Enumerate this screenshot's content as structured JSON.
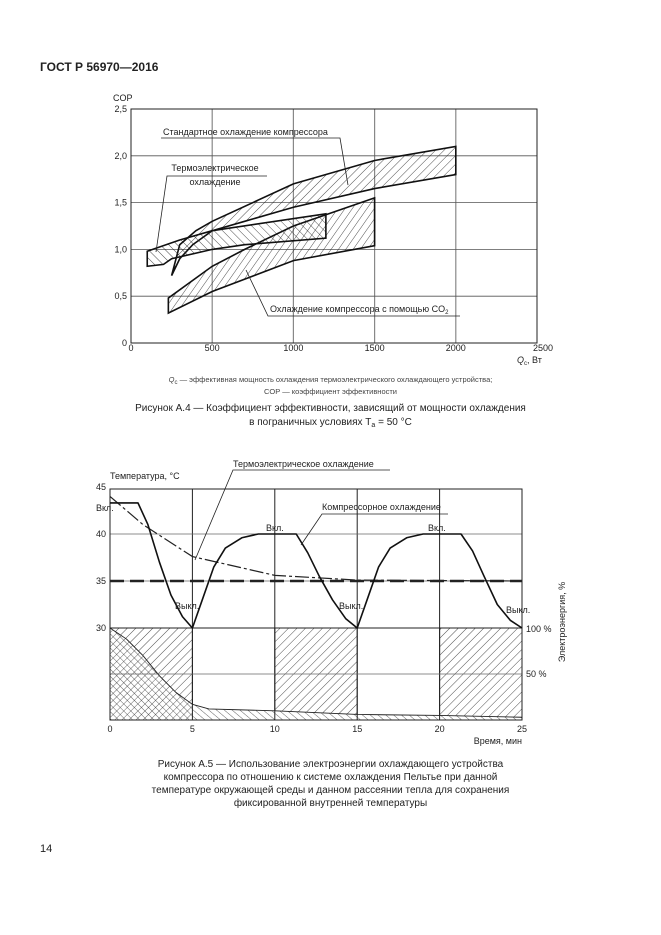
{
  "header": "ГОСТ Р 56970—2016",
  "page_number": "14",
  "figure_a4": {
    "ylabel": "COP",
    "xlabel": "Q",
    "xlabel_sub": "c",
    "xlabel_unit": ", Вт",
    "xticks": [
      "0",
      "500",
      "1000",
      "1500",
      "2000",
      "2500"
    ],
    "yticks": [
      "0",
      "0,5",
      "1,0",
      "1,5",
      "2,0",
      "2,5"
    ],
    "xlim": [
      0,
      2500
    ],
    "ylim": [
      0,
      2.5
    ],
    "labels": {
      "standard": "Стандартное охлаждение компрессора",
      "thermo_1": "Термоэлектрическое",
      "thermo_2": "охлаждение",
      "co2": "Охлаждение компрессора с помощью CO",
      "co2_sub": "2"
    },
    "regions": {
      "standard": [
        [
          250,
          0.72
        ],
        [
          300,
          1.05
        ],
        [
          400,
          1.2
        ],
        [
          500,
          1.3
        ],
        [
          1000,
          1.7
        ],
        [
          1500,
          1.95
        ],
        [
          2000,
          2.1
        ],
        [
          2000,
          1.8
        ],
        [
          1500,
          1.65
        ],
        [
          1000,
          1.45
        ],
        [
          700,
          1.3
        ],
        [
          500,
          1.2
        ],
        [
          380,
          1.05
        ],
        [
          300,
          0.9
        ],
        [
          250,
          0.72
        ]
      ],
      "thermo": [
        [
          100,
          0.98
        ],
        [
          300,
          1.1
        ],
        [
          500,
          1.2
        ],
        [
          1200,
          1.38
        ],
        [
          1200,
          1.12
        ],
        [
          700,
          1.05
        ],
        [
          500,
          1.0
        ],
        [
          250,
          0.9
        ],
        [
          200,
          0.84
        ],
        [
          100,
          0.82
        ]
      ],
      "co2": [
        [
          230,
          0.48
        ],
        [
          500,
          0.82
        ],
        [
          700,
          1.0
        ],
        [
          1000,
          1.25
        ],
        [
          1500,
          1.55
        ],
        [
          1500,
          1.04
        ],
        [
          1000,
          0.88
        ],
        [
          500,
          0.55
        ],
        [
          230,
          0.32
        ]
      ]
    },
    "note_1": "— эффективная мощность охлаждения термоэлектрического охлаждающего устройства;",
    "note_1_sym": "Q",
    "note_1_sub": "c",
    "note_2": "COP — коэффициент эффективности",
    "caption_1": "Рисунок А.4 — Коэффициент эффективности, зависящий от мощности охлаждения",
    "caption_2": "в пограничных условиях T",
    "caption_2_sub": "a",
    "caption_2_end": " = 50 °C"
  },
  "figure_a5": {
    "ylabel": "Температура, °C",
    "xlabel": "Время, мин",
    "y2label": "Электроэнергия, %",
    "xticks": [
      "0",
      "5",
      "10",
      "15",
      "20",
      "25"
    ],
    "yticks": [
      "30",
      "35",
      "40",
      "45"
    ],
    "y2ticks": [
      "50 %",
      "100 %"
    ],
    "xlim": [
      0,
      25
    ],
    "labels": {
      "thermo": "Термоэлектрическое охлаждение",
      "compressor": "Компрессорное охлаждение",
      "on": "Вкл.",
      "off": "Выкл."
    },
    "compressor_temp": [
      [
        0,
        43.3
      ],
      [
        1.7,
        43.3
      ],
      [
        2.3,
        41
      ],
      [
        3,
        37
      ],
      [
        3.7,
        33.5
      ],
      [
        4.4,
        31.2
      ],
      [
        5,
        30
      ],
      [
        5.6,
        33
      ],
      [
        6.3,
        36.5
      ],
      [
        7,
        38.5
      ],
      [
        8,
        39.6
      ],
      [
        9,
        40
      ],
      [
        11.3,
        40
      ],
      [
        12,
        38
      ],
      [
        12.7,
        35.5
      ],
      [
        13.5,
        33
      ],
      [
        14.3,
        31
      ],
      [
        15,
        30
      ],
      [
        15.6,
        33
      ],
      [
        16.3,
        36.5
      ],
      [
        17,
        38.5
      ],
      [
        18,
        39.6
      ],
      [
        19,
        40
      ],
      [
        21.3,
        40
      ],
      [
        22,
        38.2
      ],
      [
        22.7,
        35.5
      ],
      [
        23.5,
        32.5
      ],
      [
        24.3,
        30.8
      ],
      [
        25,
        30
      ]
    ],
    "thermo_temp": [
      [
        0,
        44
      ],
      [
        2,
        41
      ],
      [
        5,
        37.6
      ],
      [
        7,
        36.8
      ],
      [
        10,
        35.6
      ],
      [
        15,
        35.1
      ],
      [
        25,
        35
      ]
    ],
    "setpoint_temp": 35,
    "compressor_power_on_intervals": [
      [
        0,
        5
      ],
      [
        10,
        15
      ],
      [
        20,
        25
      ]
    ],
    "thermo_power_pct": [
      [
        0,
        100
      ],
      [
        1,
        88
      ],
      [
        2,
        70
      ],
      [
        3,
        48
      ],
      [
        4,
        30
      ],
      [
        5,
        17
      ],
      [
        6,
        12
      ],
      [
        10,
        10
      ],
      [
        15,
        6
      ],
      [
        20,
        5
      ],
      [
        25,
        3
      ]
    ],
    "caption": [
      "Рисунок А.5 — Использование электроэнергии охлаждающего устройства",
      "компрессора по отношению к системе охлаждения Пельтье при данной",
      "температуре окружающей среды и данном рассеянии тепла для сохранения",
      "фиксированной внутренней температуры"
    ]
  }
}
